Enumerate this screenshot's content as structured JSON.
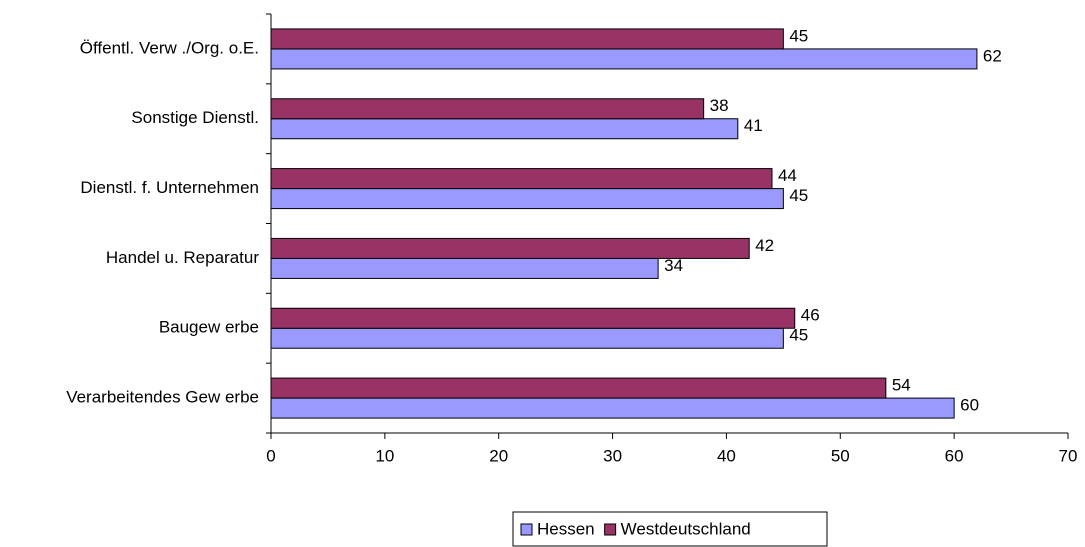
{
  "chart_data": {
    "type": "bar",
    "orientation": "horizontal",
    "categories": [
      "Öffentl. Verw ./Org. o.E.",
      "Sonstige Dienstl.",
      "Dienstl. f. Unternehmen",
      "Handel u. Reparatur",
      "Baugew erbe",
      "Verarbeitendes Gew erbe"
    ],
    "series": [
      {
        "name": "Hessen",
        "color": "#9999ff",
        "values": [
          62,
          41,
          45,
          34,
          45,
          60
        ]
      },
      {
        "name": "Westdeutschland",
        "color": "#993366",
        "values": [
          45,
          38,
          44,
          42,
          46,
          54
        ]
      }
    ],
    "xlim": [
      0,
      70
    ],
    "xticks": [
      0,
      10,
      20,
      30,
      40,
      50,
      60,
      70
    ],
    "legend": "bottom"
  }
}
